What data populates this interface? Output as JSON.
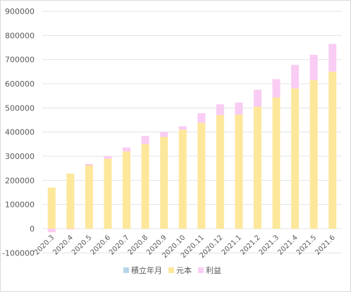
{
  "chart_data": {
    "type": "bar",
    "stacked": true,
    "categories": [
      "2020.3",
      "2020.4",
      "2020.5",
      "2020.6",
      "2020.7",
      "2020.8",
      "2020.9",
      "2020.10",
      "2020.11",
      "2020.12",
      "2021.1",
      "2021.2",
      "2021.3",
      "2021.4",
      "2021.5",
      "2021.6"
    ],
    "series": [
      {
        "name": "積立年月",
        "color": "#b4d6e6",
        "values": [
          0,
          0,
          0,
          0,
          0,
          0,
          0,
          0,
          0,
          0,
          0,
          0,
          0,
          0,
          0,
          0
        ]
      },
      {
        "name": "元本",
        "color": "#fde79a",
        "values": [
          170000,
          228000,
          262000,
          290000,
          320000,
          350000,
          380000,
          410000,
          438000,
          470000,
          472000,
          505000,
          543000,
          580000,
          615000,
          650000
        ]
      },
      {
        "name": "利益",
        "color": "#f9ccf4",
        "values": [
          -15000,
          -3000,
          6000,
          10000,
          16000,
          34000,
          20000,
          14000,
          40000,
          45000,
          50000,
          70000,
          76000,
          98000,
          105000,
          115000
        ]
      }
    ],
    "title": "",
    "xlabel": "",
    "ylabel": "",
    "ylim": [
      -100000,
      900000
    ],
    "yticks": [
      -100000,
      0,
      100000,
      200000,
      300000,
      400000,
      500000,
      600000,
      700000,
      800000,
      900000
    ],
    "grid": true,
    "legend": "bottom"
  }
}
